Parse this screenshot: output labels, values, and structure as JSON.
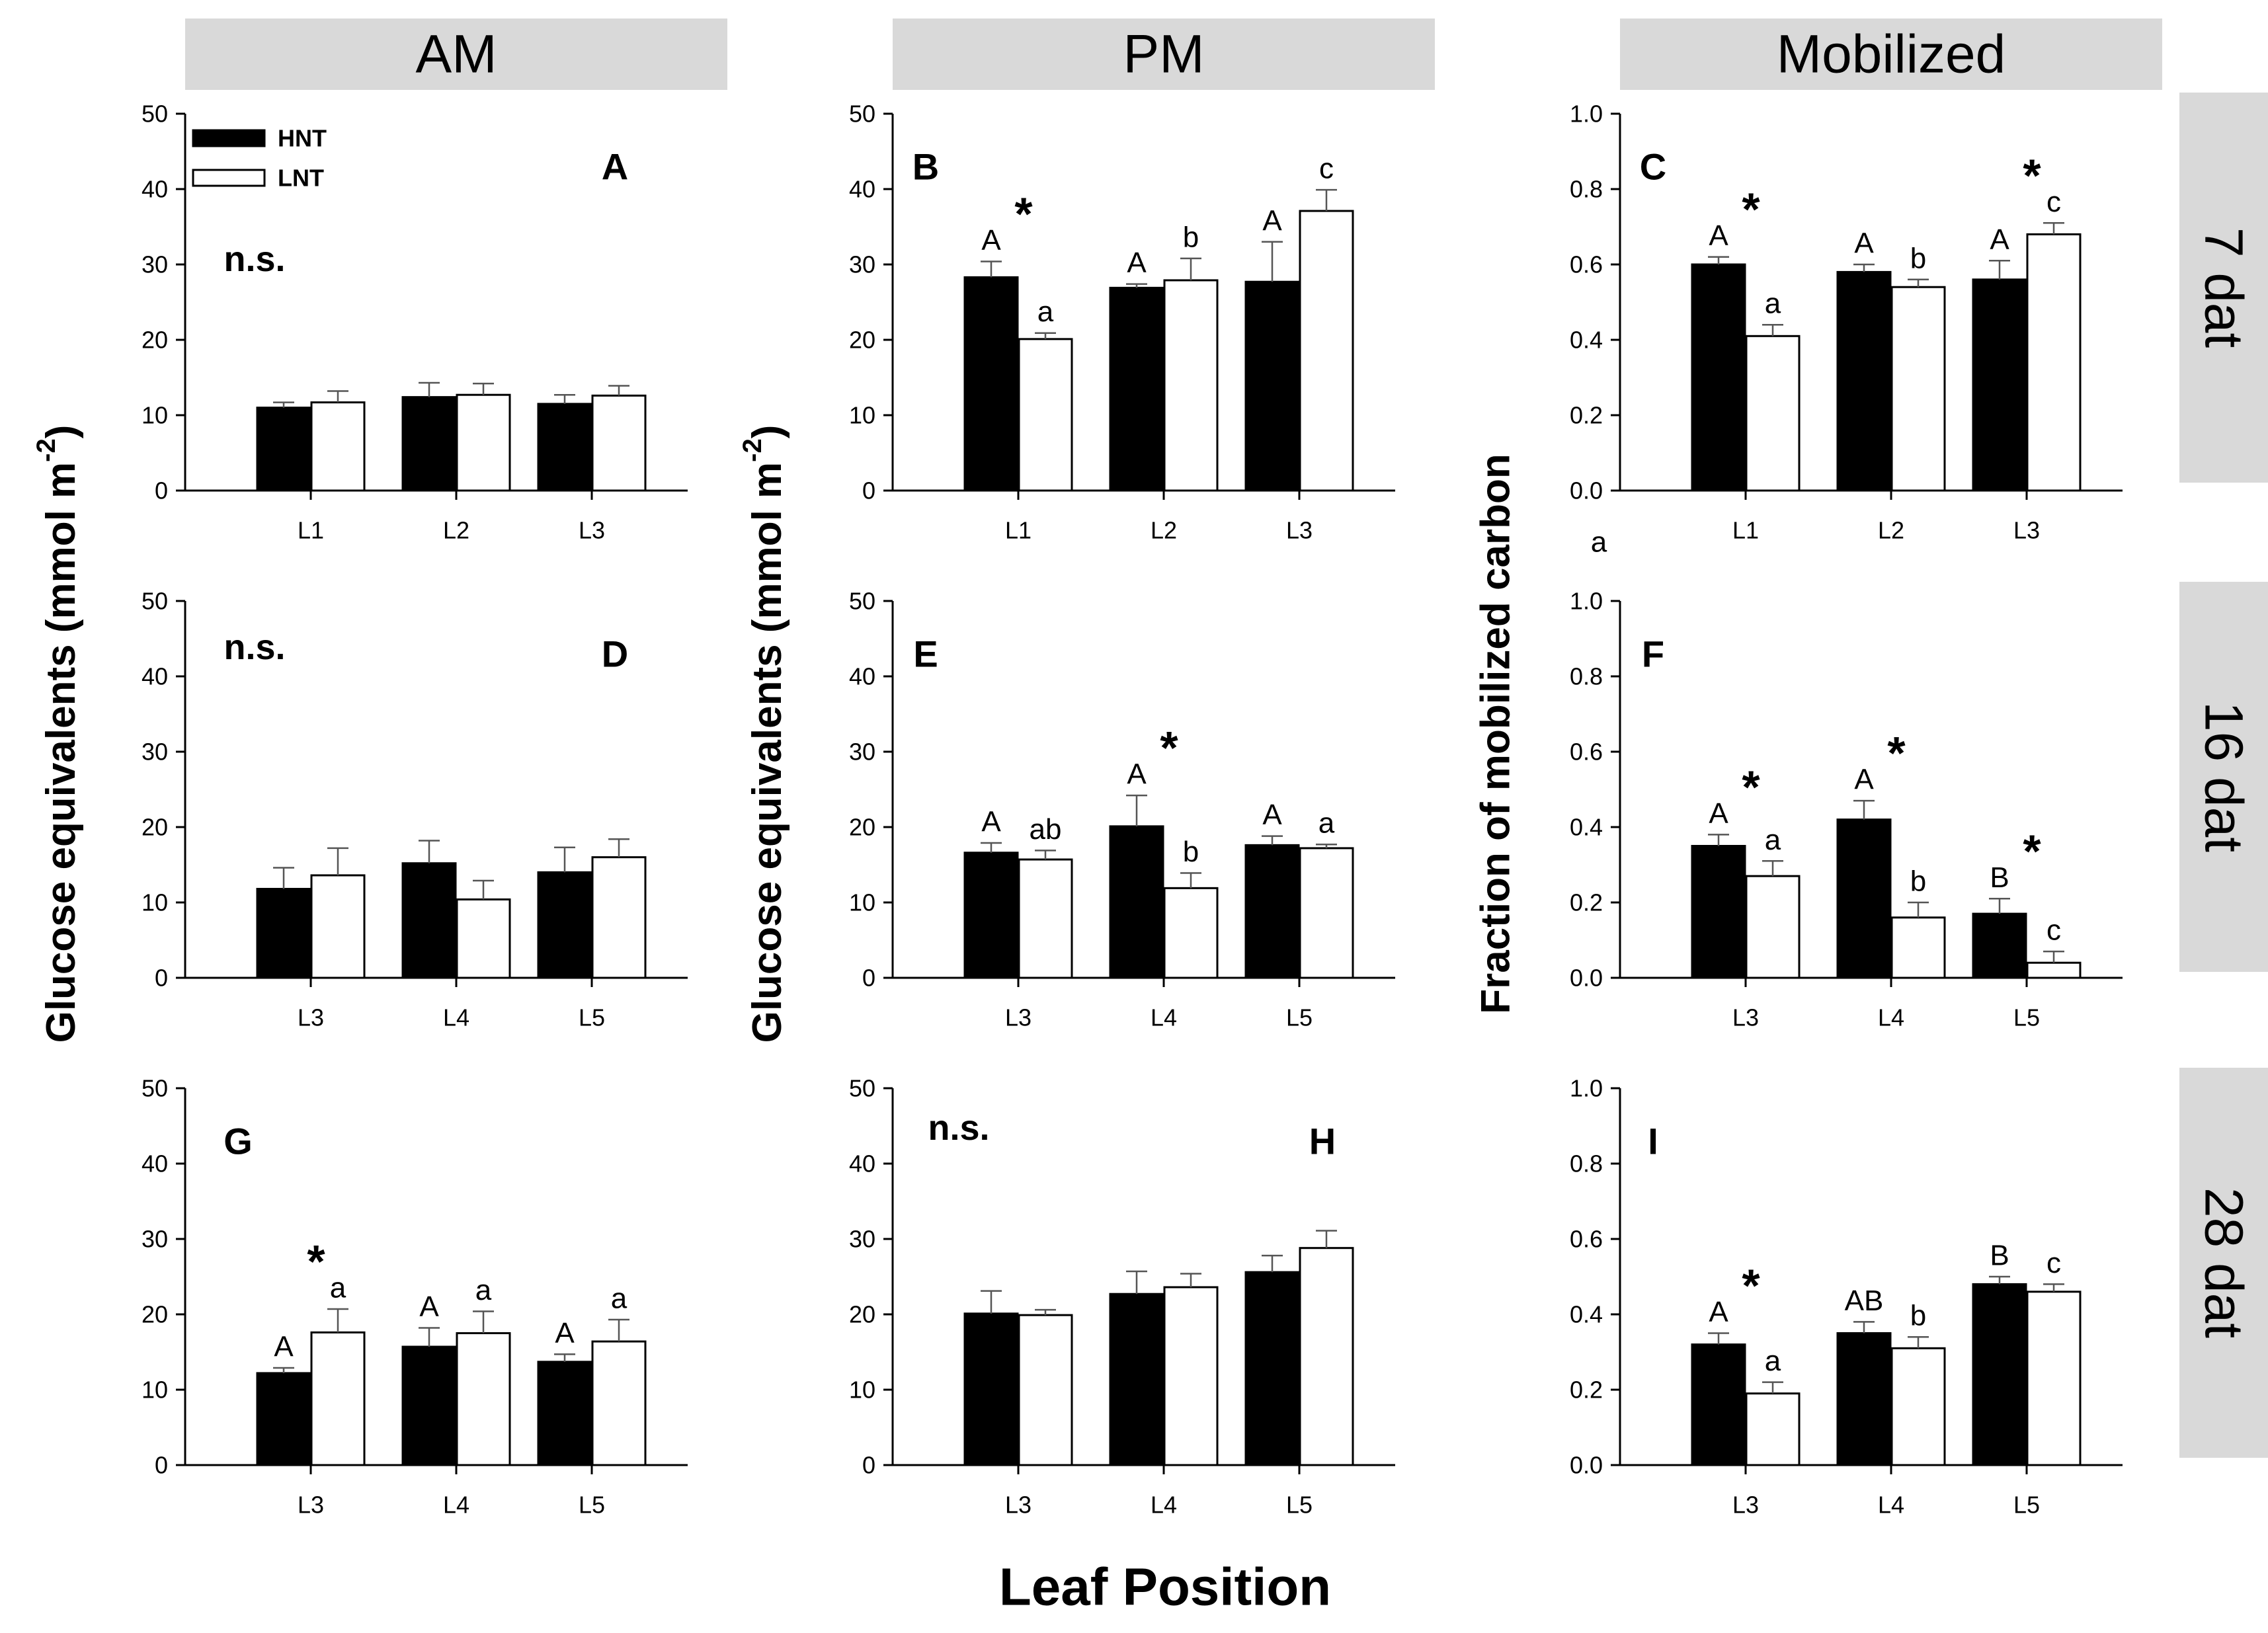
{
  "col_headers": [
    "AM",
    "PM",
    "Mobilized"
  ],
  "row_headers": [
    "7 dat",
    "16 dat",
    "28 dat"
  ],
  "ylabel_glucose": "Glucose equivalents (mmol m",
  "ylabel_sup": "-2",
  "ylabel_close": ")",
  "ylabel_fraction": "Fraction of mobilized carbon",
  "xlabel": "Leaf Position",
  "stray_text": "a",
  "legend": {
    "hnt": "HNT",
    "lnt": "LNT"
  },
  "colors": {
    "hnt": "#000000",
    "lnt": "#ffffff",
    "header_bg": "#d9d9d9"
  },
  "chart_data": [
    {
      "type": "bar",
      "panel": "A",
      "row": 0,
      "col": 0,
      "ylim": [
        0,
        50
      ],
      "ytick_step": 10,
      "yticks": [
        "0",
        "10",
        "20",
        "30",
        "40",
        "50"
      ],
      "categories": [
        "L1",
        "L2",
        "L3"
      ],
      "ns": "n.s.",
      "legend": true,
      "series": [
        {
          "name": "HNT",
          "values": [
            11,
            12.4,
            11.5
          ],
          "errors": [
            0.7,
            1.9,
            1.2
          ],
          "letters": [
            "",
            "",
            ""
          ]
        },
        {
          "name": "LNT",
          "values": [
            11.7,
            12.7,
            12.6
          ],
          "errors": [
            1.5,
            1.5,
            1.3
          ],
          "letters": [
            "",
            "",
            ""
          ]
        }
      ],
      "stars": []
    },
    {
      "type": "bar",
      "panel": "B",
      "row": 0,
      "col": 1,
      "ylim": [
        0,
        50
      ],
      "ytick_step": 10,
      "yticks": [
        "0",
        "10",
        "20",
        "30",
        "40",
        "50"
      ],
      "categories": [
        "L1",
        "L2",
        "L3"
      ],
      "ns": "",
      "series": [
        {
          "name": "HNT",
          "values": [
            28.3,
            26.9,
            27.7
          ],
          "errors": [
            2.1,
            0.5,
            5.3
          ],
          "letters": [
            "A",
            "A",
            "A"
          ]
        },
        {
          "name": "LNT",
          "values": [
            20.1,
            27.9,
            37.1
          ],
          "errors": [
            0.8,
            2.9,
            2.8
          ],
          "letters": [
            "a",
            "b",
            "c"
          ]
        }
      ],
      "stars": [
        {
          "category": 0,
          "label": "*"
        }
      ]
    },
    {
      "type": "bar",
      "panel": "C",
      "row": 0,
      "col": 2,
      "ylim": [
        0,
        1.0
      ],
      "ytick_step": 0.2,
      "yticks": [
        "0.0",
        "0.2",
        "0.4",
        "0.6",
        "0.8",
        "1.0"
      ],
      "categories": [
        "L1",
        "L2",
        "L3"
      ],
      "ns": "",
      "series": [
        {
          "name": "HNT",
          "values": [
            0.6,
            0.58,
            0.56
          ],
          "errors": [
            0.02,
            0.02,
            0.05
          ],
          "letters": [
            "A",
            "A",
            "A"
          ]
        },
        {
          "name": "LNT",
          "values": [
            0.41,
            0.54,
            0.68
          ],
          "errors": [
            0.03,
            0.02,
            0.03
          ],
          "letters": [
            "a",
            "b",
            "c"
          ]
        }
      ],
      "stars": [
        {
          "category": 0,
          "label": "*"
        },
        {
          "category": 2,
          "label": "*"
        }
      ]
    },
    {
      "type": "bar",
      "panel": "D",
      "row": 1,
      "col": 0,
      "ylim": [
        0,
        50
      ],
      "ytick_step": 10,
      "yticks": [
        "0",
        "10",
        "20",
        "30",
        "40",
        "50"
      ],
      "categories": [
        "L3",
        "L4",
        "L5"
      ],
      "ns": "n.s.",
      "series": [
        {
          "name": "HNT",
          "values": [
            11.8,
            15.2,
            14.0
          ],
          "errors": [
            2.8,
            3.0,
            3.3
          ],
          "letters": [
            "",
            "",
            ""
          ]
        },
        {
          "name": "LNT",
          "values": [
            13.6,
            10.4,
            16.0
          ],
          "errors": [
            3.6,
            2.5,
            2.4
          ],
          "letters": [
            "",
            "",
            ""
          ]
        }
      ],
      "stars": []
    },
    {
      "type": "bar",
      "panel": "E",
      "row": 1,
      "col": 1,
      "ylim": [
        0,
        50
      ],
      "ytick_step": 10,
      "yticks": [
        "0",
        "10",
        "20",
        "30",
        "40",
        "50"
      ],
      "categories": [
        "L3",
        "L4",
        "L5"
      ],
      "ns": "",
      "series": [
        {
          "name": "HNT",
          "values": [
            16.6,
            20.1,
            17.6
          ],
          "errors": [
            1.3,
            4.1,
            1.2
          ],
          "letters": [
            "A",
            "A",
            "A"
          ]
        },
        {
          "name": "LNT",
          "values": [
            15.7,
            11.9,
            17.2
          ],
          "errors": [
            1.2,
            2.0,
            0.5
          ],
          "letters": [
            "ab",
            "b",
            "a"
          ]
        }
      ],
      "stars": [
        {
          "category": 1,
          "label": "*"
        }
      ]
    },
    {
      "type": "bar",
      "panel": "F",
      "row": 1,
      "col": 2,
      "ylim": [
        0,
        1.0
      ],
      "ytick_step": 0.2,
      "yticks": [
        "0.0",
        "0.2",
        "0.4",
        "0.6",
        "0.8",
        "1.0"
      ],
      "categories": [
        "L3",
        "L4",
        "L5"
      ],
      "ns": "",
      "series": [
        {
          "name": "HNT",
          "values": [
            0.35,
            0.42,
            0.17
          ],
          "errors": [
            0.03,
            0.05,
            0.04
          ],
          "letters": [
            "A",
            "A",
            "B"
          ]
        },
        {
          "name": "LNT",
          "values": [
            0.27,
            0.16,
            0.04
          ],
          "errors": [
            0.04,
            0.04,
            0.03
          ],
          "letters": [
            "a",
            "b",
            "c"
          ]
        }
      ],
      "stars": [
        {
          "category": 0,
          "label": "*"
        },
        {
          "category": 1,
          "label": "*"
        },
        {
          "category": 2,
          "label": "*"
        }
      ]
    },
    {
      "type": "bar",
      "panel": "G",
      "row": 2,
      "col": 0,
      "ylim": [
        0,
        50
      ],
      "ytick_step": 10,
      "yticks": [
        "0",
        "10",
        "20",
        "30",
        "40",
        "50"
      ],
      "categories": [
        "L3",
        "L4",
        "L5"
      ],
      "ns": "",
      "series": [
        {
          "name": "HNT",
          "values": [
            12.2,
            15.7,
            13.7
          ],
          "errors": [
            0.7,
            2.5,
            1.0
          ],
          "letters": [
            "A",
            "A",
            "A"
          ]
        },
        {
          "name": "LNT",
          "values": [
            17.6,
            17.5,
            16.4
          ],
          "errors": [
            3.1,
            2.9,
            2.9
          ],
          "letters": [
            "a",
            "a",
            "a"
          ]
        }
      ],
      "stars": [
        {
          "category": 0,
          "label": "*"
        }
      ]
    },
    {
      "type": "bar",
      "panel": "H",
      "row": 2,
      "col": 1,
      "ylim": [
        0,
        50
      ],
      "ytick_step": 10,
      "yticks": [
        "0",
        "10",
        "20",
        "30",
        "40",
        "50"
      ],
      "categories": [
        "L3",
        "L4",
        "L5"
      ],
      "ns": "n.s.",
      "series": [
        {
          "name": "HNT",
          "values": [
            20.1,
            22.7,
            25.6
          ],
          "errors": [
            3.0,
            3.0,
            2.2
          ],
          "letters": [
            "",
            "",
            ""
          ]
        },
        {
          "name": "LNT",
          "values": [
            19.9,
            23.6,
            28.8
          ],
          "errors": [
            0.7,
            1.8,
            2.3
          ],
          "letters": [
            "",
            "",
            ""
          ]
        }
      ],
      "stars": []
    },
    {
      "type": "bar",
      "panel": "I",
      "row": 2,
      "col": 2,
      "ylim": [
        0,
        1.0
      ],
      "ytick_step": 0.2,
      "yticks": [
        "0.0",
        "0.2",
        "0.4",
        "0.6",
        "0.8",
        "1.0"
      ],
      "categories": [
        "L3",
        "L4",
        "L5"
      ],
      "ns": "",
      "series": [
        {
          "name": "HNT",
          "values": [
            0.32,
            0.35,
            0.48
          ],
          "errors": [
            0.03,
            0.03,
            0.02
          ],
          "letters": [
            "A",
            "AB",
            "B"
          ]
        },
        {
          "name": "LNT",
          "values": [
            0.19,
            0.31,
            0.46
          ],
          "errors": [
            0.03,
            0.03,
            0.02
          ],
          "letters": [
            "a",
            "b",
            "c"
          ]
        }
      ],
      "stars": [
        {
          "category": 0,
          "label": "*"
        }
      ]
    }
  ]
}
